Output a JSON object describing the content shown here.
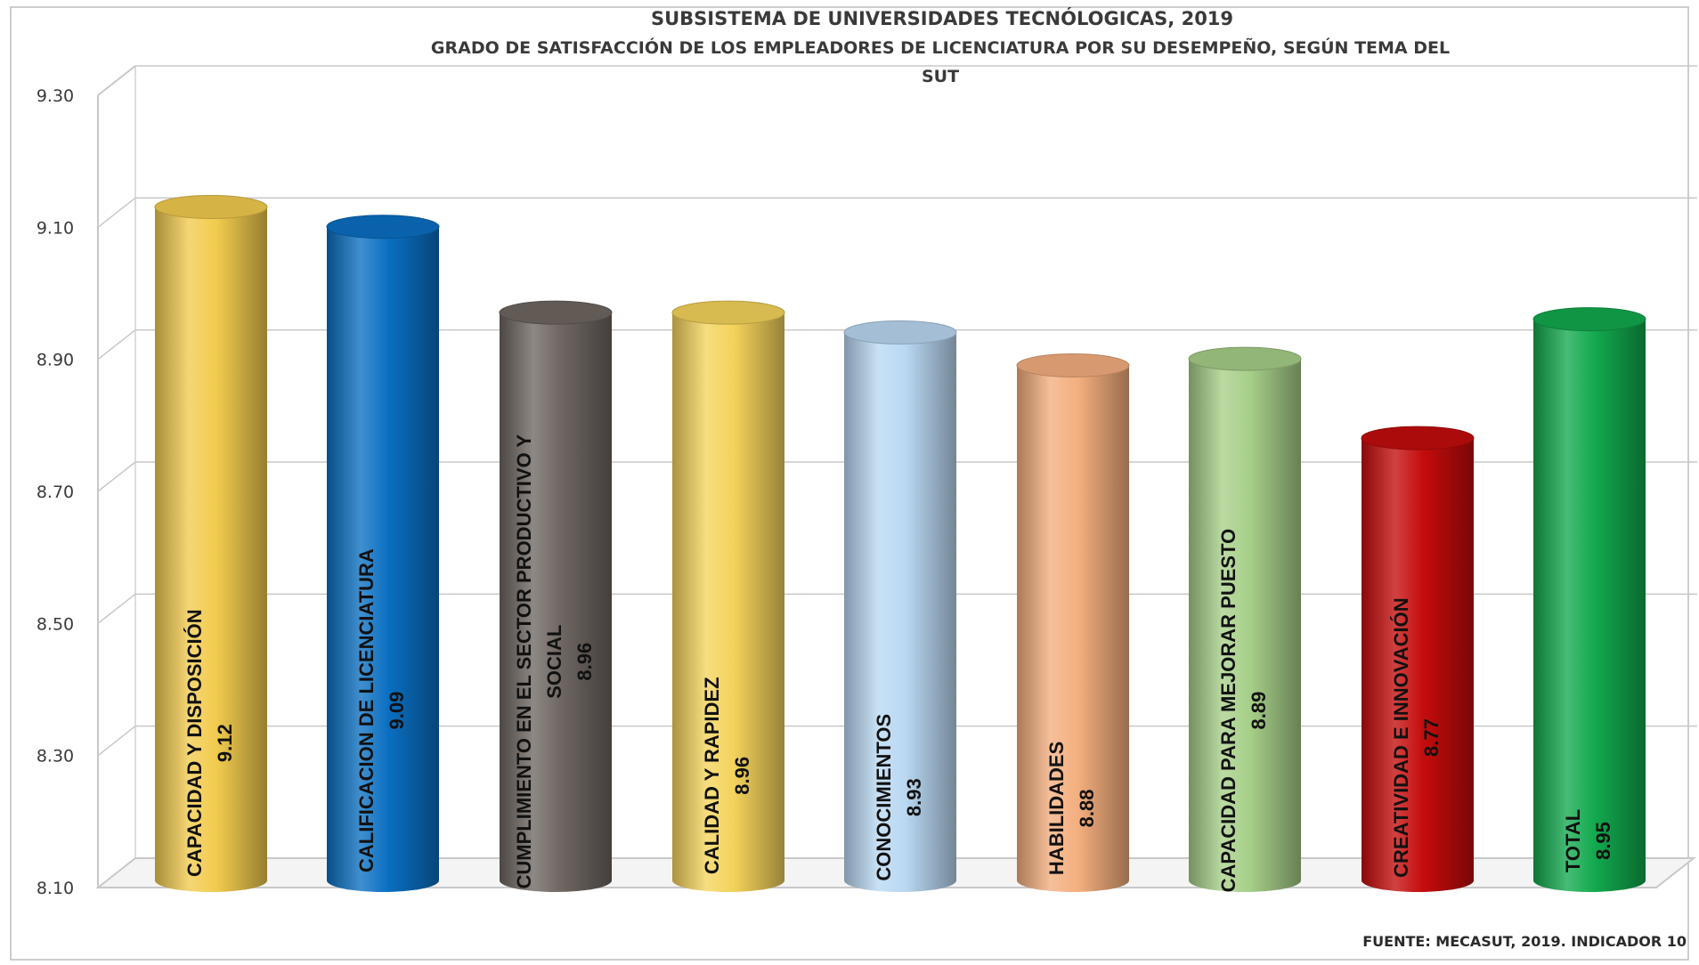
{
  "chart_data": {
    "type": "bar",
    "title_lines": [
      "SUBSISTEMA DE UNIVERSIDADES TECNÓLOGICAS, 2019",
      "GRADO DE SATISFACCIÓN DE LOS EMPLEADORES DE LICENCIATURA POR SU DESEMPEÑO, SEGÚN TEMA DEL",
      "SUT"
    ],
    "xlabel": "",
    "ylabel": "",
    "ylim": [
      8.1,
      9.3
    ],
    "y_ticks": [
      "9.30",
      "9.10",
      "8.90",
      "8.70",
      "8.50",
      "8.30",
      "8.10"
    ],
    "grid": true,
    "legend": "none",
    "categories": [
      {
        "lines": [
          "CAPACIDAD Y DISPOSICIÓN"
        ],
        "value_label": "9.12"
      },
      {
        "lines": [
          "CALIFICACION DE  LICENCIATURA"
        ],
        "value_label": "9.09"
      },
      {
        "lines": [
          "CUMPLIMIENTO EN EL SECTOR PRODUCTIVO Y",
          "SOCIAL"
        ],
        "value_label": "8.96"
      },
      {
        "lines": [
          "CALIDAD Y RAPIDEZ"
        ],
        "value_label": "8.96"
      },
      {
        "lines": [
          "CONOCIMIENTOS"
        ],
        "value_label": "8.93"
      },
      {
        "lines": [
          "HABILIDADES"
        ],
        "value_label": "8.88"
      },
      {
        "lines": [
          "CAPACIDAD PARA MEJORAR PUESTO"
        ],
        "value_label": "8.89"
      },
      {
        "lines": [
          "CREATIVIDAD E INNOVACIÓN"
        ],
        "value_label": "8.77"
      },
      {
        "lines": [
          "TOTAL"
        ],
        "value_label": "8.95"
      }
    ],
    "values": [
      9.12,
      9.09,
      8.96,
      8.96,
      8.93,
      8.88,
      8.89,
      8.77,
      8.95
    ],
    "colors": [
      "#F2CB4E",
      "#0A6FC2",
      "#6E6661",
      "#F4D35B",
      "#B9D8F2",
      "#F4AE7E",
      "#A6CF88",
      "#C40C0C",
      "#12A94E"
    ],
    "source": "FUENTE: MECASUT, 2019. INDICADOR 10"
  }
}
